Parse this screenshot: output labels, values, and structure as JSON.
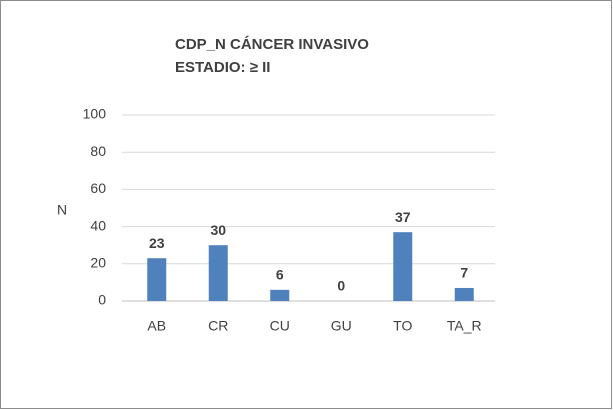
{
  "chart_data": {
    "type": "bar",
    "title": [
      "CDP_N CÁNCER INVASIVO",
      "ESTADIO: ≥ II"
    ],
    "y_label": "N",
    "categories": [
      "AB",
      "CR",
      "CU",
      "GU",
      "TO",
      "TA_R"
    ],
    "values": [
      23,
      30,
      6,
      0,
      37,
      7
    ],
    "color": "#4f81bd",
    "ylim": [
      0,
      100
    ],
    "yticks": [
      0,
      20,
      40,
      60,
      80,
      100
    ],
    "grid": true
  }
}
